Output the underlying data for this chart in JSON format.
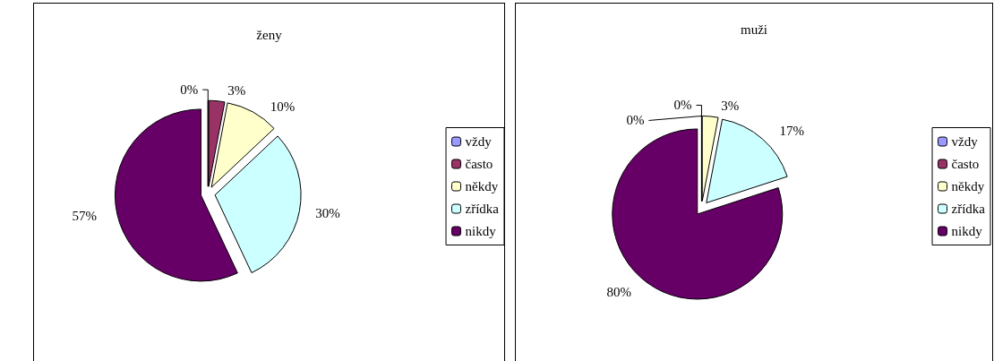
{
  "chart_data": [
    {
      "type": "pie",
      "title": "ženy",
      "categories": [
        "vždy",
        "často",
        "někdy",
        "zřídka",
        "nikdy"
      ],
      "values": [
        0,
        3,
        10,
        30,
        57
      ],
      "value_labels": [
        "0%",
        "3%",
        "10%",
        "30%",
        "57%"
      ],
      "colors": [
        "#9999ff",
        "#993366",
        "#ffffcc",
        "#ccffff",
        "#660066"
      ],
      "legend": "right"
    },
    {
      "type": "pie",
      "title": "muži",
      "categories": [
        "vždy",
        "často",
        "někdy",
        "zřídka",
        "nikdy"
      ],
      "values": [
        0,
        0,
        3,
        17,
        80
      ],
      "value_labels": [
        "0%",
        "0%",
        "3%",
        "17%",
        "80%"
      ],
      "colors": [
        "#9999ff",
        "#993366",
        "#ffffcc",
        "#ccffff",
        "#660066"
      ],
      "legend": "right"
    }
  ]
}
